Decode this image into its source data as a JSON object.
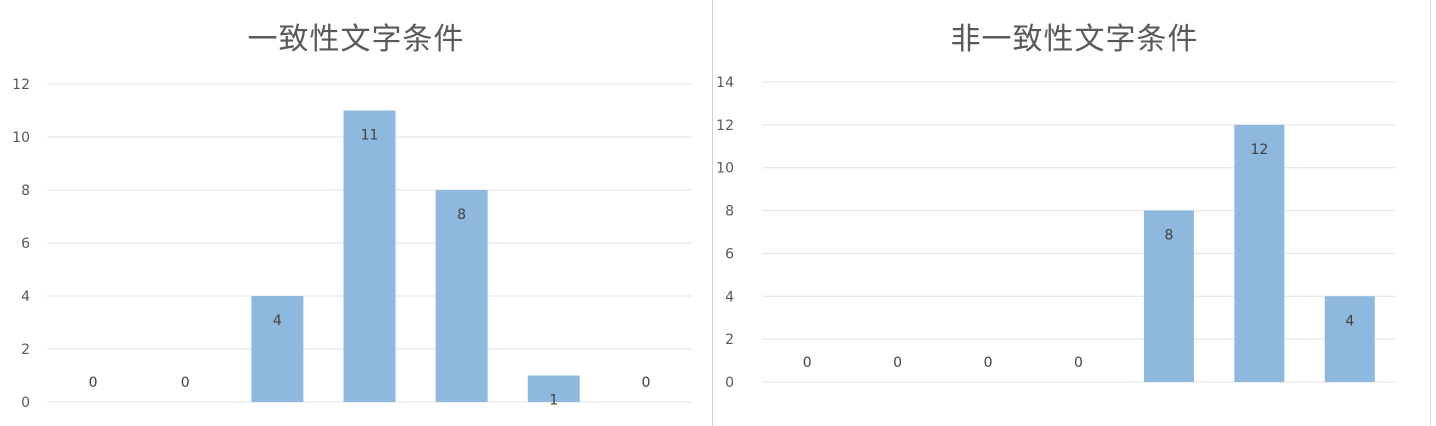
{
  "chart_data": [
    {
      "type": "bar",
      "title": "一致性文字条件",
      "categories": [
        "",
        "",
        "",
        "",
        "",
        "",
        ""
      ],
      "values": [
        0,
        0,
        4,
        11,
        8,
        1,
        0
      ],
      "data_labels": [
        "0",
        "0",
        "4",
        "11",
        "8",
        "1",
        "0"
      ],
      "y_ticks": [
        "0",
        "2",
        "4",
        "6",
        "8",
        "10",
        "12"
      ],
      "ylim": [
        0,
        12
      ],
      "xlabel": "",
      "ylabel": "",
      "grid": true,
      "bar_color": "#8fb8de"
    },
    {
      "type": "bar",
      "title": "非一致性文字条件",
      "categories": [
        "",
        "",
        "",
        "",
        "",
        "",
        ""
      ],
      "values": [
        0,
        0,
        0,
        0,
        8,
        12,
        4
      ],
      "data_labels": [
        "0",
        "0",
        "0",
        "0",
        "8",
        "12",
        "4"
      ],
      "y_ticks": [
        "0",
        "2",
        "4",
        "6",
        "8",
        "10",
        "12",
        "14"
      ],
      "ylim": [
        0,
        14
      ],
      "xlabel": "",
      "ylabel": "",
      "grid": true,
      "bar_color": "#8fb8de"
    }
  ]
}
